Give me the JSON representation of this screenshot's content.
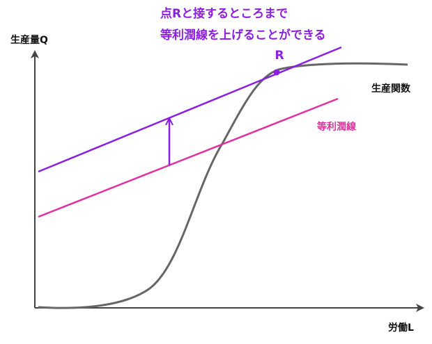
{
  "annotation": {
    "line1": "点Rと接するところまで",
    "line2": "等利潤線を上げることができる"
  },
  "axes": {
    "y_label": "生産量Q",
    "x_label": "労働L"
  },
  "curves": {
    "production": "生産関数",
    "isoprofit": "等利潤線"
  },
  "point": {
    "label": "R"
  }
}
